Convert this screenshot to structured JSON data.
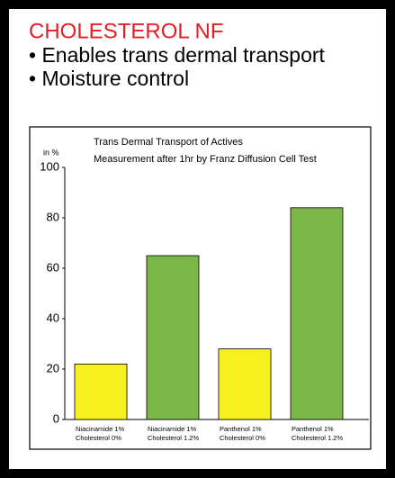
{
  "header": {
    "title": "CHOLESTEROL NF",
    "bullets": [
      "• Enables trans dermal transport",
      "• Moisture control"
    ]
  },
  "chart_data": {
    "type": "bar",
    "title": [
      "Trans Dermal Transport of Actives",
      "Measurement after 1hr by Franz Diffusion Cell Test"
    ],
    "y_label": "in %",
    "categories": [
      [
        "Niacinamide 1%",
        "Cholesterol 0%"
      ],
      [
        "Niacinamide 1%",
        "Cholesterol 1.2%"
      ],
      [
        "Panthenol 1%",
        "Cholesterol 0%"
      ],
      [
        "Panthenol 1%",
        "Cholesterol 1.2%"
      ]
    ],
    "values": [
      22,
      65,
      28,
      84
    ],
    "colors": [
      "#f5f01e",
      "#7ab648",
      "#f5f01e",
      "#7ab648"
    ],
    "ylim": [
      0,
      100
    ],
    "yticks": [
      0,
      20,
      40,
      60,
      80,
      100
    ],
    "grid": false
  }
}
